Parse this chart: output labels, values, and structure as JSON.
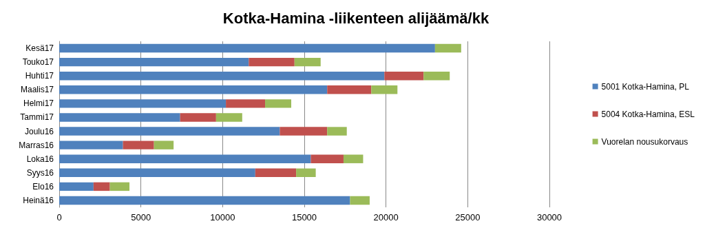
{
  "chart_data": {
    "type": "bar",
    "orientation": "horizontal",
    "stacked": true,
    "title": "Kotka-Hamina -liikenteen alijäämä/kk",
    "categories": [
      "Kesä17",
      "Touko17",
      "Huhti17",
      "Maalis17",
      "Helmi17",
      "Tammi17",
      "Joulu16",
      "Marras16",
      "Loka16",
      "Syys16",
      "Elo16",
      "Heinä16"
    ],
    "series": [
      {
        "name": "5001 Kotka-Hamina, PL",
        "color": "#4f81bd",
        "values": [
          23000,
          11600,
          19900,
          16400,
          10200,
          7400,
          13500,
          3900,
          15400,
          12000,
          2100,
          17800
        ]
      },
      {
        "name": "5004 Kotka-Hamina, ESL",
        "color": "#c0504d",
        "values": [
          0,
          2800,
          2400,
          2700,
          2400,
          2200,
          2900,
          1900,
          2000,
          2500,
          1000,
          0
        ]
      },
      {
        "name": "Vuorelan nousukorvaus",
        "color": "#9bbb59",
        "values": [
          1600,
          1600,
          1600,
          1600,
          1600,
          1600,
          1200,
          1200,
          1200,
          1200,
          1200,
          1200
        ]
      }
    ],
    "xlim": [
      0,
      30000
    ],
    "xticks": [
      0,
      5000,
      10000,
      15000,
      20000,
      25000,
      30000
    ],
    "grid": "x",
    "legend": "right"
  }
}
